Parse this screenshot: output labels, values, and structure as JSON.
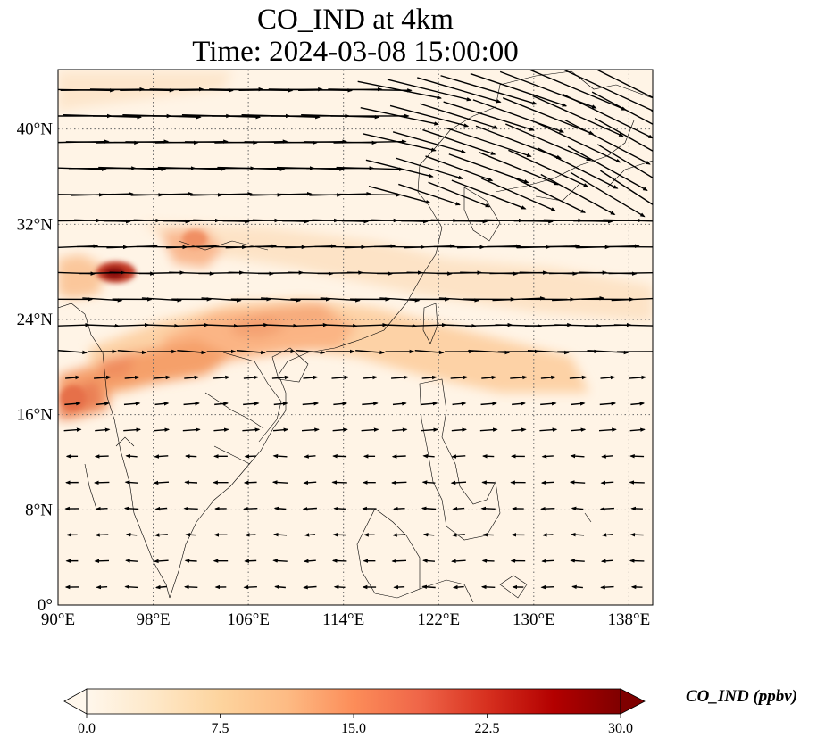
{
  "title": {
    "line1": "CO_IND at 4km",
    "line2": "Time: 2024-03-08 15:00:00"
  },
  "map": {
    "lon_range": [
      90,
      140
    ],
    "lat_range": [
      0,
      45
    ],
    "x_ticks": [
      "90°E",
      "98°E",
      "106°E",
      "114°E",
      "122°E",
      "130°E",
      "138°E"
    ],
    "x_tick_values": [
      90,
      98,
      106,
      114,
      122,
      130,
      138
    ],
    "y_ticks": [
      "0°",
      "8°N",
      "16°N",
      "24°N",
      "32°N",
      "40°N"
    ],
    "y_tick_values": [
      0,
      8,
      16,
      24,
      32,
      40
    ],
    "gridlines": true,
    "field_variable": "CO_IND",
    "colormap": "OrRd",
    "overlay": "wind vectors"
  },
  "colorbar": {
    "label": "CO_IND (ppbv)",
    "ticks": [
      "0.0",
      "7.5",
      "15.0",
      "22.5",
      "30.0"
    ],
    "min": 0.0,
    "max": 30.0,
    "extend": "both",
    "colors": [
      "#fff7ec",
      "#fee8c8",
      "#fdd49e",
      "#fdbb84",
      "#fc8d59",
      "#ef6548",
      "#d7301f",
      "#b30000",
      "#7f0000"
    ]
  }
}
